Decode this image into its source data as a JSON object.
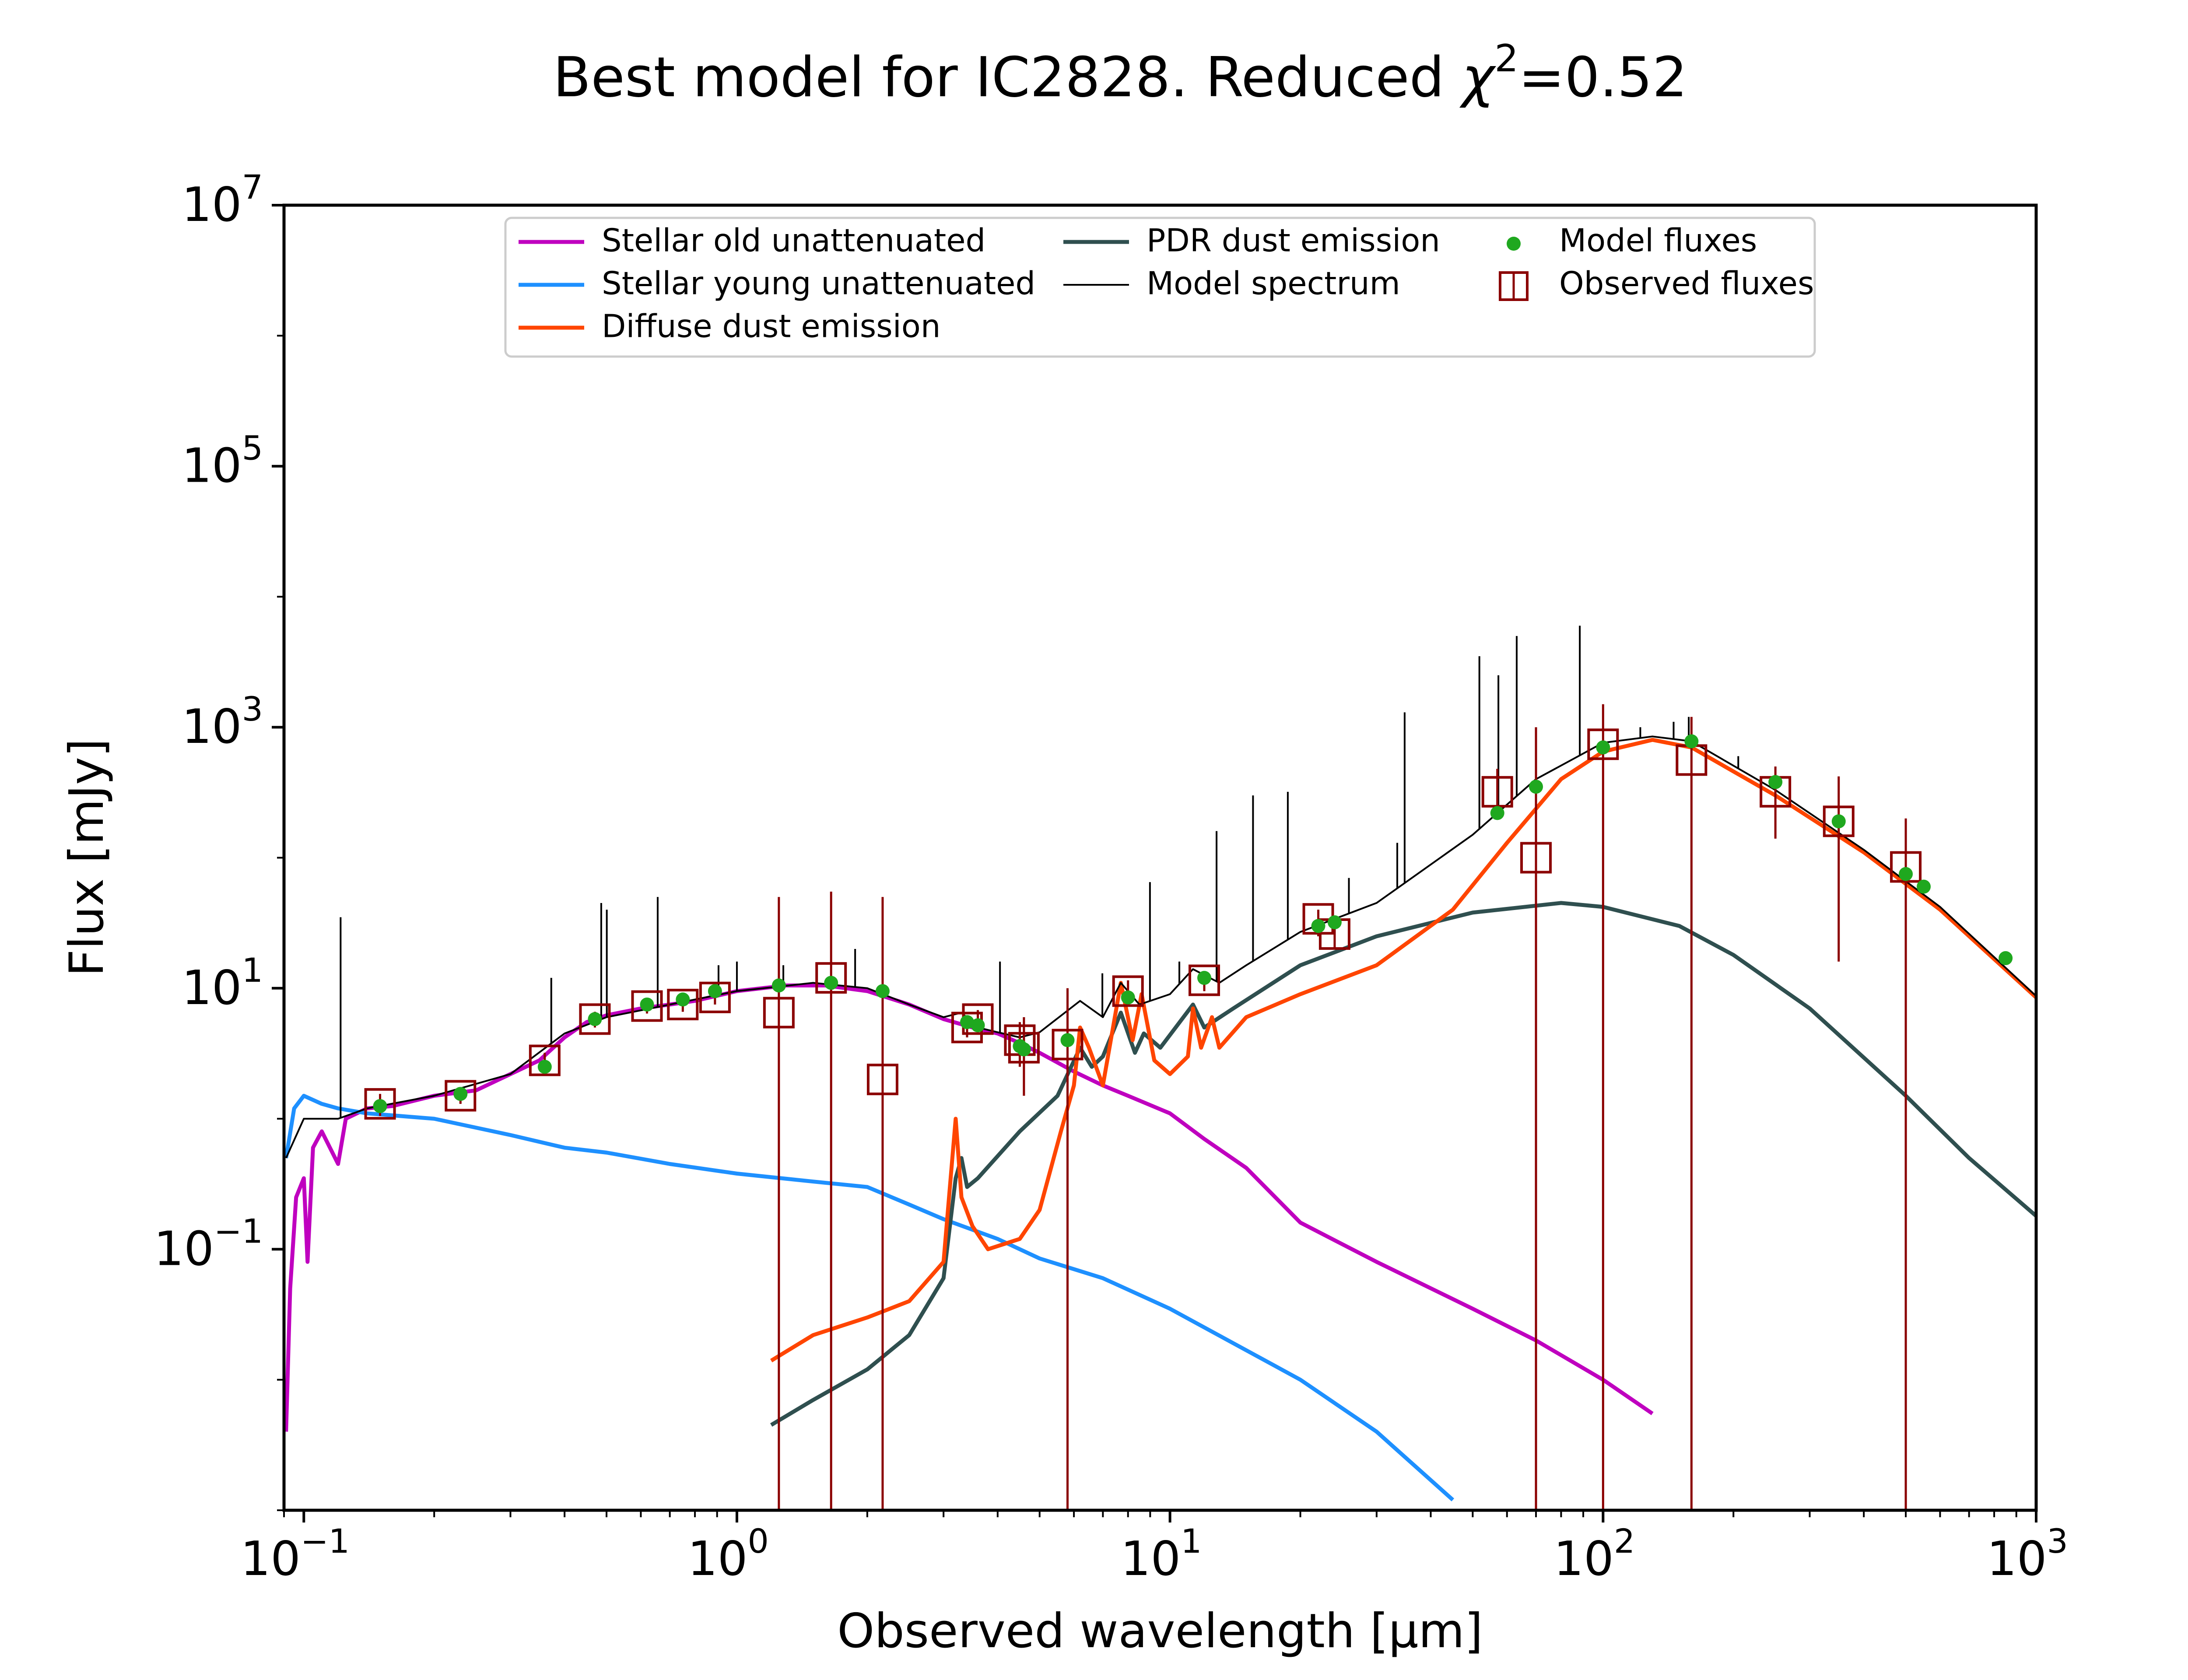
{
  "chart_data": {
    "type": "line",
    "title": "Best model for IC2828. Reduced",
    "title_chi": "χ",
    "title_chi_exp": "2",
    "title_value": "=0.52",
    "xlabel": "Observed wavelength [μm]",
    "ylabel": "Flux [mJy]",
    "x_scale": "log",
    "y_scale": "log",
    "xlim": [
      0.09,
      1000
    ],
    "ylim": [
      0.001,
      10000000
    ],
    "x_ticks": [
      {
        "value": 0.1,
        "base": "10",
        "exp": "−1"
      },
      {
        "value": 1,
        "base": "10",
        "exp": "0"
      },
      {
        "value": 10,
        "base": "10",
        "exp": "1"
      },
      {
        "value": 100,
        "base": "10",
        "exp": "2"
      },
      {
        "value": 1000,
        "base": "10",
        "exp": "3"
      }
    ],
    "y_ticks": [
      {
        "value": 0.1,
        "base": "10",
        "exp": "−1"
      },
      {
        "value": 10,
        "base": "10",
        "exp": "1"
      },
      {
        "value": 1000,
        "base": "10",
        "exp": "3"
      },
      {
        "value": 100000,
        "base": "10",
        "exp": "5"
      },
      {
        "value": 10000000,
        "base": "10",
        "exp": "7"
      }
    ],
    "grid": false,
    "legend_position": "top-center",
    "legend_columns": 3,
    "series": [
      {
        "name": "Stellar old unattenuated",
        "color": "#bf00bf",
        "points": [
          [
            0.091,
            0.004
          ],
          [
            0.093,
            0.05
          ],
          [
            0.096,
            0.25
          ],
          [
            0.1,
            0.35
          ],
          [
            0.102,
            0.08
          ],
          [
            0.105,
            0.6
          ],
          [
            0.11,
            0.8
          ],
          [
            0.12,
            0.45
          ],
          [
            0.125,
            1.0
          ],
          [
            0.14,
            1.2
          ],
          [
            0.16,
            1.25
          ],
          [
            0.2,
            1.5
          ],
          [
            0.25,
            1.65
          ],
          [
            0.3,
            2.2
          ],
          [
            0.35,
            2.8
          ],
          [
            0.4,
            4.2
          ],
          [
            0.45,
            5.5
          ],
          [
            0.5,
            6.2
          ],
          [
            0.6,
            7.0
          ],
          [
            0.7,
            7.5
          ],
          [
            0.8,
            8.0
          ],
          [
            1.0,
            9.5
          ],
          [
            1.3,
            10.5
          ],
          [
            1.6,
            10.5
          ],
          [
            2.0,
            9.5
          ],
          [
            2.5,
            7.5
          ],
          [
            3.0,
            5.8
          ],
          [
            3.5,
            5.0
          ],
          [
            4.0,
            4.5
          ],
          [
            4.5,
            3.8
          ],
          [
            5.0,
            3.2
          ],
          [
            6.0,
            2.3
          ],
          [
            7.0,
            1.8
          ],
          [
            8.0,
            1.5
          ],
          [
            10.0,
            1.1
          ],
          [
            12.0,
            0.7
          ],
          [
            15.0,
            0.42
          ],
          [
            20.0,
            0.16
          ],
          [
            30.0,
            0.08
          ],
          [
            50.0,
            0.035
          ],
          [
            70.0,
            0.02
          ],
          [
            100.0,
            0.01
          ],
          [
            130.0,
            0.0055
          ]
        ]
      },
      {
        "name": "Stellar young unattenuated",
        "color": "#1e90ff",
        "points": [
          [
            0.091,
            0.5
          ],
          [
            0.095,
            1.2
          ],
          [
            0.1,
            1.5
          ],
          [
            0.11,
            1.3
          ],
          [
            0.12,
            1.2
          ],
          [
            0.14,
            1.1
          ],
          [
            0.2,
            1.0
          ],
          [
            0.3,
            0.75
          ],
          [
            0.4,
            0.6
          ],
          [
            0.5,
            0.55
          ],
          [
            0.7,
            0.45
          ],
          [
            1.0,
            0.38
          ],
          [
            1.5,
            0.33
          ],
          [
            2.0,
            0.3
          ],
          [
            2.5,
            0.22
          ],
          [
            3.0,
            0.17
          ],
          [
            4.0,
            0.12
          ],
          [
            5.0,
            0.085
          ],
          [
            7.0,
            0.06
          ],
          [
            10.0,
            0.035
          ],
          [
            20.0,
            0.01
          ],
          [
            30.0,
            0.004
          ],
          [
            45.0,
            0.0012
          ]
        ]
      },
      {
        "name": "Diffuse dust emission",
        "color": "#ff4500",
        "points": [
          [
            1.2,
            0.014
          ],
          [
            1.5,
            0.022
          ],
          [
            2.0,
            0.03
          ],
          [
            2.5,
            0.04
          ],
          [
            3.0,
            0.08
          ],
          [
            3.2,
            1.0
          ],
          [
            3.3,
            0.25
          ],
          [
            3.5,
            0.15
          ],
          [
            3.8,
            0.1
          ],
          [
            4.5,
            0.12
          ],
          [
            5.0,
            0.2
          ],
          [
            5.6,
            0.8
          ],
          [
            6.0,
            1.8
          ],
          [
            6.2,
            5.0
          ],
          [
            6.5,
            3.5
          ],
          [
            7.0,
            1.8
          ],
          [
            7.7,
            11.0
          ],
          [
            8.2,
            4.0
          ],
          [
            8.6,
            9.0
          ],
          [
            9.2,
            2.8
          ],
          [
            10.0,
            2.2
          ],
          [
            11.0,
            3.0
          ],
          [
            11.3,
            7.0
          ],
          [
            11.8,
            3.5
          ],
          [
            12.5,
            6.0
          ],
          [
            13.0,
            3.5
          ],
          [
            15.0,
            6.0
          ],
          [
            20.0,
            9.0
          ],
          [
            30.0,
            15.0
          ],
          [
            45.0,
            40.0
          ],
          [
            60.0,
            130.0
          ],
          [
            80.0,
            400.0
          ],
          [
            100.0,
            650.0
          ],
          [
            130.0,
            800.0
          ],
          [
            160.0,
            700.0
          ],
          [
            250.0,
            300.0
          ],
          [
            400.0,
            110.0
          ],
          [
            600.0,
            40.0
          ],
          [
            1000.0,
            8.5
          ]
        ]
      },
      {
        "name": "PDR dust emission",
        "color": "#2f4f4f",
        "points": [
          [
            1.2,
            0.0045
          ],
          [
            1.5,
            0.007
          ],
          [
            2.0,
            0.012
          ],
          [
            2.5,
            0.022
          ],
          [
            3.0,
            0.06
          ],
          [
            3.2,
            0.35
          ],
          [
            3.3,
            0.5
          ],
          [
            3.4,
            0.3
          ],
          [
            3.6,
            0.35
          ],
          [
            4.5,
            0.8
          ],
          [
            5.5,
            1.5
          ],
          [
            6.2,
            3.5
          ],
          [
            6.6,
            2.5
          ],
          [
            7.0,
            3.0
          ],
          [
            7.7,
            6.5
          ],
          [
            8.3,
            3.2
          ],
          [
            8.7,
            4.5
          ],
          [
            9.5,
            3.5
          ],
          [
            11.3,
            7.5
          ],
          [
            12.0,
            5.0
          ],
          [
            14.0,
            7.0
          ],
          [
            20.0,
            15.0
          ],
          [
            30.0,
            25.0
          ],
          [
            50.0,
            38.0
          ],
          [
            80.0,
            45.0
          ],
          [
            100.0,
            42.0
          ],
          [
            150.0,
            30.0
          ],
          [
            200.0,
            18.0
          ],
          [
            300.0,
            7.0
          ],
          [
            500.0,
            1.5
          ],
          [
            700.0,
            0.5
          ],
          [
            1000.0,
            0.18
          ]
        ]
      },
      {
        "name": "Model spectrum",
        "color": "#000000",
        "points": [
          [
            0.091,
            0.5
          ],
          [
            0.1,
            1.0
          ],
          [
            0.12,
            1.0
          ],
          [
            0.14,
            1.2
          ],
          [
            0.2,
            1.5
          ],
          [
            0.3,
            2.2
          ],
          [
            0.4,
            4.5
          ],
          [
            0.5,
            6.0
          ],
          [
            0.7,
            7.5
          ],
          [
            1.0,
            9.5
          ],
          [
            1.5,
            11.0
          ],
          [
            2.0,
            10.0
          ],
          [
            2.5,
            7.5
          ],
          [
            3.0,
            6.0
          ],
          [
            3.3,
            6.5
          ],
          [
            3.6,
            5.0
          ],
          [
            4.0,
            4.6
          ],
          [
            4.5,
            4.2
          ],
          [
            5.0,
            4.6
          ],
          [
            6.2,
            8.0
          ],
          [
            7.0,
            6.0
          ],
          [
            7.7,
            11.0
          ],
          [
            8.5,
            7.5
          ],
          [
            10.0,
            9.0
          ],
          [
            11.3,
            14.0
          ],
          [
            13.0,
            11.0
          ],
          [
            15.0,
            15.0
          ],
          [
            20.0,
            27.0
          ],
          [
            30.0,
            45.0
          ],
          [
            50.0,
            150.0
          ],
          [
            70.0,
            400.0
          ],
          [
            100.0,
            760.0
          ],
          [
            130.0,
            850.0
          ],
          [
            160.0,
            780.0
          ],
          [
            250.0,
            330.0
          ],
          [
            400.0,
            115.0
          ],
          [
            600.0,
            42.0
          ],
          [
            1000.0,
            8.7
          ]
        ]
      }
    ],
    "emission_lines": [
      [
        0.1216,
        35
      ],
      [
        0.3727,
        12
      ],
      [
        0.4861,
        45
      ],
      [
        0.5007,
        40
      ],
      [
        0.6563,
        50
      ],
      [
        0.9069,
        15
      ],
      [
        1.0,
        16
      ],
      [
        1.28,
        15
      ],
      [
        1.875,
        20
      ],
      [
        4.05,
        16
      ],
      [
        6.98,
        13
      ],
      [
        8.99,
        65
      ],
      [
        10.51,
        16
      ],
      [
        12.81,
        160
      ],
      [
        15.55,
        300
      ],
      [
        18.71,
        320
      ],
      [
        25.89,
        70
      ],
      [
        33.48,
        130
      ],
      [
        34.82,
        1300
      ],
      [
        51.81,
        3500
      ],
      [
        57.32,
        2500
      ],
      [
        63.18,
        5000
      ],
      [
        88.36,
        6000
      ],
      [
        121.9,
        1000
      ],
      [
        145.5,
        1100
      ],
      [
        157.7,
        1200
      ],
      [
        205.2,
        600
      ]
    ],
    "model_fluxes": {
      "name": "Model fluxes",
      "color": "#1fa81f",
      "x": [
        0.15,
        0.23,
        0.36,
        0.47,
        0.62,
        0.75,
        0.89,
        1.25,
        1.65,
        2.17,
        3.4,
        3.6,
        4.5,
        4.6,
        5.8,
        8.0,
        12.0,
        22.0,
        24.0,
        57.0,
        70.0,
        100.0,
        160.0,
        250.0,
        350.0,
        500.0,
        550.0,
        850.0
      ],
      "y": [
        1.25,
        1.55,
        2.5,
        5.8,
        7.5,
        8.2,
        9.5,
        10.5,
        11.0,
        9.5,
        5.5,
        5.2,
        3.6,
        3.4,
        4.0,
        8.5,
        12.0,
        30.0,
        32.0,
        220.0,
        350.0,
        700.0,
        780.0,
        380.0,
        190.0,
        75.0,
        60.0,
        17.0
      ]
    },
    "observed_fluxes": {
      "name": "Observed fluxes",
      "color": "#8b0000",
      "x": [
        0.15,
        0.23,
        0.36,
        0.47,
        0.62,
        0.75,
        0.89,
        1.25,
        1.65,
        2.17,
        3.4,
        3.6,
        4.5,
        4.6,
        5.8,
        8.0,
        12.0,
        22.0,
        24.0,
        57.0,
        70.0,
        100.0,
        160.0,
        250.0,
        350.0,
        500.0
      ],
      "y": [
        1.3,
        1.5,
        2.8,
        5.8,
        7.3,
        7.5,
        8.5,
        6.5,
        12.0,
        2.0,
        5.0,
        5.8,
        4.0,
        3.5,
        3.7,
        9.5,
        11.5,
        34.0,
        26.0,
        320.0,
        100.0,
        740.0,
        560.0,
        320.0,
        190.0,
        85.0
      ],
      "err_lo": [
        1.05,
        1.3,
        2.4,
        5.0,
        6.4,
        6.6,
        7.5,
        0.001,
        0.001,
        0.001,
        4.2,
        4.8,
        2.5,
        1.5,
        0.001,
        7.5,
        9.5,
        25.0,
        20.0,
        200.0,
        0.001,
        0.001,
        0.001,
        140.0,
        16.0,
        0.001
      ],
      "err_hi": [
        1.55,
        1.7,
        3.2,
        6.6,
        8.2,
        8.4,
        9.5,
        50.0,
        55.0,
        50.0,
        5.8,
        6.8,
        5.5,
        6.0,
        10.0,
        11.5,
        13.5,
        40.0,
        32.0,
        480.0,
        1000.0,
        1500.0,
        1200.0,
        500.0,
        420.0,
        200.0
      ]
    }
  }
}
